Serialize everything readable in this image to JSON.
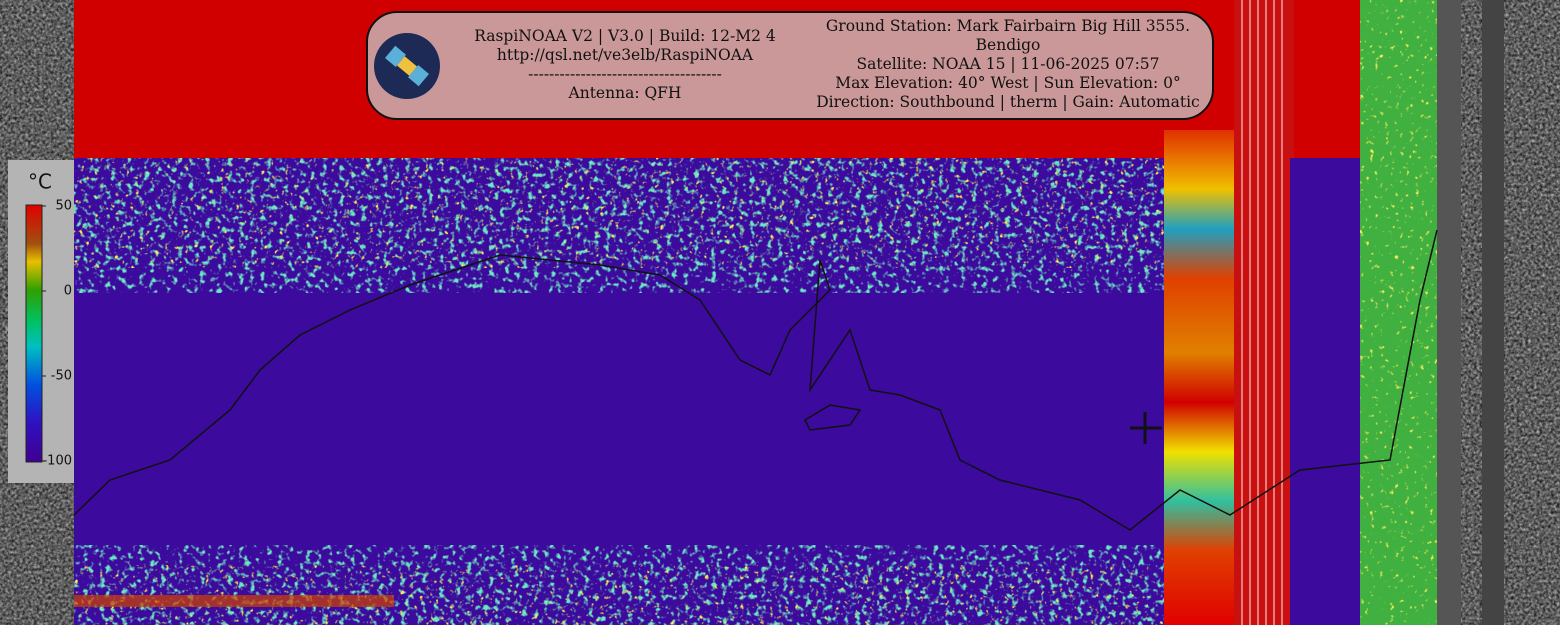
{
  "header": {
    "left": [
      "RaspiNOAA V2 | V3.0 | Build: 12-M2 4",
      "http://qsl.net/ve3elb/RaspiNOAA",
      "-------------------------------------",
      "Antenna: QFH"
    ],
    "right": [
      "Ground Station: Mark Fairbairn Big Hill 3555.",
      "Bendigo",
      "Satellite: NOAA 15 | 11-06-2025 07:57",
      "Max Elevation: 40° West | Sun Elevation: 0°",
      "Direction: Southbound | therm | Gain: Automatic"
    ]
  },
  "colorbar": {
    "unit": "°C",
    "ticks": [
      50,
      0,
      -50,
      -100
    ]
  }
}
